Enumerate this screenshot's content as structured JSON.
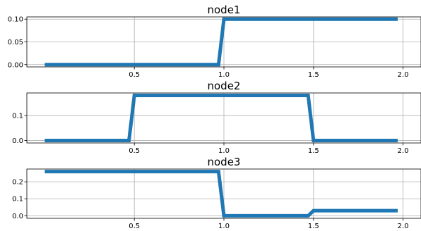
{
  "chart_data": [
    {
      "type": "line",
      "title": "node1",
      "xlabel": "",
      "ylabel": "",
      "xlim": [
        -0.1,
        2.1
      ],
      "ylim": [
        -0.005,
        0.105
      ],
      "xticks": [
        0.5,
        1.0,
        1.5,
        2.0
      ],
      "xtick_labels": [
        "0.5",
        "1.0",
        "1.5",
        "2.0"
      ],
      "yticks": [
        0.0,
        0.05,
        0.1
      ],
      "ytick_labels": [
        "0.00",
        "0.05",
        "0.10"
      ],
      "grid": true,
      "color": "#1f77b4",
      "series": [
        {
          "x": [
            0.0,
            0.97,
            1.0,
            1.97
          ],
          "y": [
            0.0,
            0.0,
            0.1,
            0.1
          ]
        }
      ]
    },
    {
      "type": "line",
      "title": "node2",
      "xlabel": "",
      "ylabel": "",
      "xlim": [
        -0.1,
        2.1
      ],
      "ylim": [
        -0.01,
        0.19
      ],
      "xticks": [
        0.5,
        1.0,
        1.5,
        2.0
      ],
      "xtick_labels": [
        "0.5",
        "1.0",
        "1.5",
        "2.0"
      ],
      "yticks": [
        0.0,
        0.1
      ],
      "ytick_labels": [
        "0.0",
        "0.1"
      ],
      "grid": true,
      "color": "#1f77b4",
      "series": [
        {
          "x": [
            0.0,
            0.47,
            0.5,
            1.47,
            1.5,
            1.97
          ],
          "y": [
            0.0,
            0.0,
            0.18,
            0.18,
            0.0,
            0.0
          ]
        }
      ]
    },
    {
      "type": "line",
      "title": "node3",
      "xlabel": "",
      "ylabel": "",
      "xlim": [
        -0.1,
        2.1
      ],
      "ylim": [
        -0.015,
        0.275
      ],
      "xticks": [
        0.5,
        1.0,
        1.5,
        2.0
      ],
      "xtick_labels": [
        "0.5",
        "1.0",
        "1.5",
        "2.0"
      ],
      "yticks": [
        0.0,
        0.1,
        0.2
      ],
      "ytick_labels": [
        "0.0",
        "0.1",
        "0.2"
      ],
      "grid": true,
      "color": "#1f77b4",
      "series": [
        {
          "x": [
            0.0,
            0.97,
            1.0,
            1.47,
            1.5,
            1.97
          ],
          "y": [
            0.26,
            0.26,
            0.0,
            0.0,
            0.03,
            0.03
          ]
        }
      ]
    }
  ]
}
